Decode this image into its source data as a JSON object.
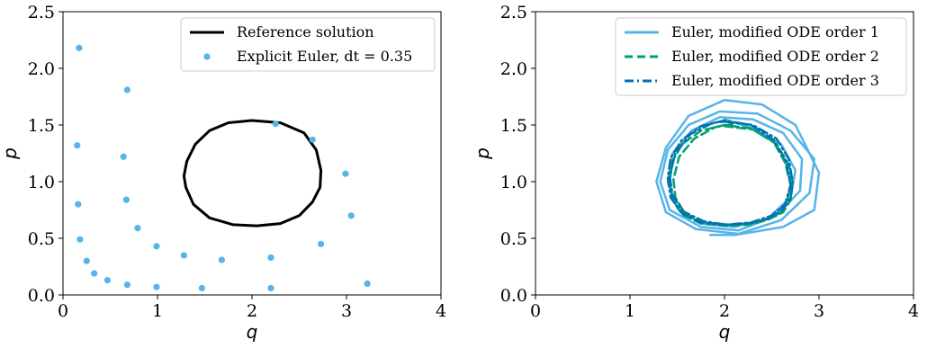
{
  "chart_data": [
    {
      "type": "scatter",
      "xlabel": "q",
      "ylabel": "p",
      "xlim": [
        0,
        4
      ],
      "ylim": [
        0,
        2.5
      ],
      "xticks": [
        "0",
        "1",
        "2",
        "3",
        "4"
      ],
      "yticks": [
        "0.0",
        "0.5",
        "1.0",
        "1.5",
        "2.0",
        "2.5"
      ],
      "legend_position": "top-right",
      "series": [
        {
          "name": "Reference solution",
          "kind": "line",
          "color": "#000000",
          "x": [
            2.0,
            2.3,
            2.55,
            2.68,
            2.73,
            2.72,
            2.64,
            2.5,
            2.3,
            2.05,
            1.8,
            1.55,
            1.38,
            1.3,
            1.28,
            1.31,
            1.4,
            1.55,
            1.75,
            2.0
          ],
          "y": [
            1.54,
            1.52,
            1.43,
            1.28,
            1.1,
            0.95,
            0.82,
            0.7,
            0.63,
            0.61,
            0.62,
            0.68,
            0.8,
            0.95,
            1.05,
            1.18,
            1.33,
            1.45,
            1.52,
            1.54
          ]
        },
        {
          "name": "Explicit Euler, dt = 0.35",
          "kind": "points",
          "color": "#56b4e9",
          "x": [
            0.17,
            0.68,
            0.15,
            0.64,
            0.67,
            0.16,
            0.18,
            0.79,
            0.25,
            0.33,
            0.47,
            0.68,
            0.99,
            1.28,
            1.68,
            1.47,
            2.2,
            2.2,
            2.73,
            3.05,
            2.99,
            2.64,
            2.25,
            3.22,
            0.99
          ],
          "y": [
            2.18,
            1.81,
            1.32,
            1.22,
            0.84,
            0.8,
            0.49,
            0.59,
            0.3,
            0.19,
            0.13,
            0.09,
            0.07,
            0.35,
            0.31,
            0.06,
            0.33,
            0.06,
            0.45,
            0.7,
            1.07,
            1.37,
            1.51,
            0.1,
            0.43
          ]
        }
      ]
    },
    {
      "type": "line",
      "xlabel": "q",
      "ylabel": "p",
      "xlim": [
        0,
        4
      ],
      "ylim": [
        0,
        2.5
      ],
      "xticks": [
        "0",
        "1",
        "2",
        "3",
        "4"
      ],
      "yticks": [
        "0.0",
        "0.5",
        "1.0",
        "1.5",
        "2.0",
        "2.5"
      ],
      "legend_position": "top-right",
      "series": [
        {
          "name": "Euler, modified ODE order 1",
          "color": "#56b4e9",
          "dash": "solid",
          "x": [
            2.0,
            2.3,
            2.6,
            2.75,
            2.7,
            2.45,
            2.1,
            1.75,
            1.5,
            1.4,
            1.45,
            1.65,
            1.95,
            2.3,
            2.62,
            2.82,
            2.8,
            2.55,
            2.15,
            1.75,
            1.42,
            1.32,
            1.4,
            1.62,
            1.95,
            2.35,
            2.7,
            2.95,
            2.9,
            2.6,
            2.15,
            1.7,
            1.38,
            1.28,
            1.38,
            1.62,
            2.0,
            2.4,
            2.75,
            3.0,
            2.95,
            2.62,
            2.12,
            1.85
          ],
          "y": [
            1.55,
            1.47,
            1.33,
            1.1,
            0.86,
            0.67,
            0.6,
            0.63,
            0.77,
            1.0,
            1.25,
            1.45,
            1.57,
            1.55,
            1.43,
            1.2,
            0.92,
            0.7,
            0.57,
            0.6,
            0.75,
            1.0,
            1.28,
            1.5,
            1.62,
            1.6,
            1.45,
            1.2,
            0.9,
            0.66,
            0.54,
            0.58,
            0.73,
            1.0,
            1.3,
            1.58,
            1.72,
            1.68,
            1.5,
            1.08,
            0.75,
            0.6,
            0.53,
            0.53
          ]
        },
        {
          "name": "Euler, modified ODE order 2",
          "color": "#009e73",
          "dash": "dashed",
          "x": [
            2.0,
            2.3,
            2.55,
            2.68,
            2.72,
            2.7,
            2.62,
            2.45,
            2.25,
            2.0,
            1.75,
            1.55,
            1.45,
            1.42,
            1.45,
            1.55,
            1.75,
            2.0,
            2.28,
            2.52,
            2.64,
            2.7,
            2.66,
            2.55,
            2.35,
            2.05,
            1.78,
            1.58,
            1.48,
            1.46,
            1.52,
            1.68,
            1.9,
            2.1
          ],
          "y": [
            1.49,
            1.46,
            1.33,
            1.15,
            0.98,
            0.84,
            0.73,
            0.66,
            0.62,
            0.61,
            0.63,
            0.71,
            0.84,
            1.0,
            1.18,
            1.33,
            1.45,
            1.5,
            1.47,
            1.35,
            1.17,
            0.97,
            0.82,
            0.71,
            0.64,
            0.62,
            0.64,
            0.72,
            0.86,
            1.02,
            1.22,
            1.38,
            1.48,
            1.51
          ]
        },
        {
          "name": "Euler, modified ODE order 3",
          "color": "#0072b2",
          "dash": "dashdot",
          "x": [
            2.0,
            2.3,
            2.55,
            2.68,
            2.72,
            2.7,
            2.6,
            2.45,
            2.25,
            2.0,
            1.75,
            1.55,
            1.43,
            1.4,
            1.43,
            1.55,
            1.75,
            2.0,
            2.28,
            2.52,
            2.65,
            2.7,
            2.64,
            2.5,
            2.28,
            2.02,
            1.78,
            1.56,
            1.45,
            1.42,
            1.48,
            1.64,
            1.88,
            2.0
          ],
          "y": [
            1.53,
            1.5,
            1.38,
            1.2,
            1.0,
            0.85,
            0.74,
            0.67,
            0.63,
            0.62,
            0.64,
            0.72,
            0.86,
            1.03,
            1.21,
            1.37,
            1.49,
            1.54,
            1.5,
            1.37,
            1.18,
            0.97,
            0.8,
            0.7,
            0.64,
            0.62,
            0.65,
            0.74,
            0.88,
            1.05,
            1.25,
            1.42,
            1.52,
            1.53
          ]
        }
      ]
    }
  ]
}
